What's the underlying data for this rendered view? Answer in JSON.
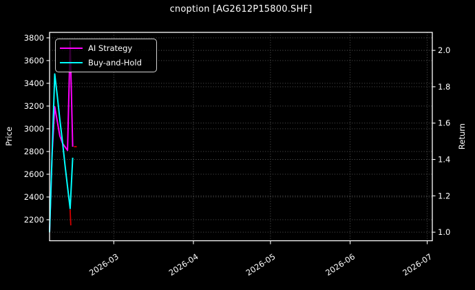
{
  "figure": {
    "background": "#000000",
    "text_color": "#ffffff",
    "grid_color": "#606060",
    "spine_color": "#ffffff"
  },
  "chart_data": {
    "type": "line",
    "title": "cnoption [AG2612P15800.SHF]",
    "x_axis": {
      "tick_labels": [
        "2026-03",
        "2026-04",
        "2026-05",
        "2026-06",
        "2026-07"
      ],
      "tick_dates": [
        "2026-03-01",
        "2026-04-01",
        "2026-05-01",
        "2026-06-01",
        "2026-07-01"
      ],
      "range": [
        "2026-02-04",
        "2026-07-03"
      ],
      "tick_label_rotation_deg": -33
    },
    "left_axis": {
      "label": "Price",
      "ticks": [
        2200,
        2400,
        2600,
        2800,
        3000,
        3200,
        3400,
        3600,
        3800
      ],
      "range": [
        2015,
        3848
      ]
    },
    "right_axis": {
      "label": "Return",
      "ticks": [
        1.0,
        1.2,
        1.4,
        1.6,
        1.8,
        2.0
      ],
      "range": [
        0.953,
        2.099
      ]
    },
    "grid": {
      "style": "dotted",
      "horizontal": "both-axes-ticks",
      "vertical": "month-ticks"
    },
    "legend": {
      "position": "upper-left",
      "entries": [
        {
          "label": "AI Strategy",
          "color": "#ff00ff"
        },
        {
          "label": "Buy-and-Hold",
          "color": "#00ffff"
        }
      ]
    },
    "series": [
      {
        "name": "AI Strategy",
        "color": "#ff00ff",
        "axis": "right",
        "dates": [
          "2026-02-04",
          "2026-02-05",
          "2026-02-06",
          "2026-02-07",
          "2026-02-08",
          "2026-02-09",
          "2026-02-10",
          "2026-02-11",
          "2026-02-12",
          "2026-02-13"
        ],
        "values": [
          1.0,
          1.43,
          1.69,
          1.61,
          1.53,
          1.49,
          1.47,
          1.45,
          2.05,
          1.47
        ]
      },
      {
        "name": "Buy-and-Hold",
        "color": "#00ffff",
        "axis": "right",
        "dates": [
          "2026-02-04",
          "2026-02-05",
          "2026-02-06",
          "2026-02-07",
          "2026-02-08",
          "2026-02-09",
          "2026-02-10",
          "2026-02-11",
          "2026-02-12",
          "2026-02-13"
        ],
        "values": [
          1.0,
          1.43,
          1.87,
          1.75,
          1.62,
          1.5,
          1.37,
          1.25,
          1.13,
          1.41
        ]
      }
    ],
    "price_marks": {
      "name": "Price (partially visible, left axis)",
      "color": "#d40000",
      "segments": [
        {
          "type": "vertical-drop",
          "date": "2026-02-12",
          "from_price": 2290,
          "to_price": 2150
        },
        {
          "type": "dash",
          "from_date": "2026-02-13T12:00:00",
          "to_date": "2026-02-14T14:00:00",
          "price": 2843
        }
      ]
    }
  }
}
